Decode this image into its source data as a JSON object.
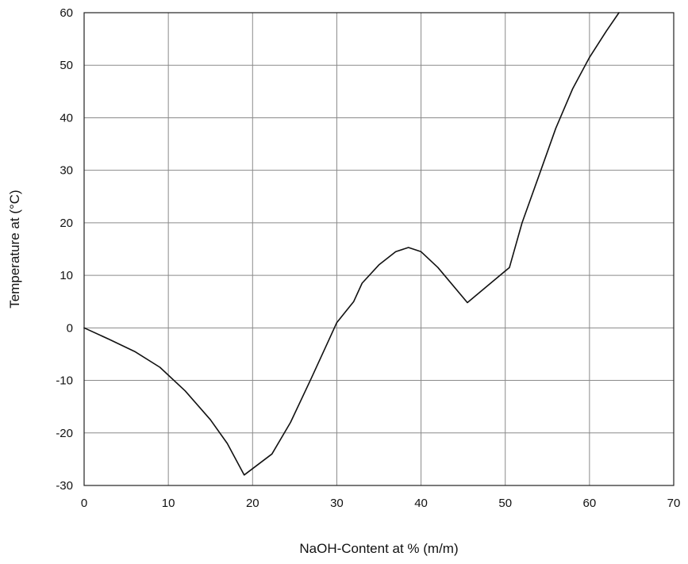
{
  "chart_data": {
    "type": "line",
    "title": "",
    "xlabel": "NaOH-Content at % (m/m)",
    "ylabel": "Temperature at (°C)",
    "xlim": [
      0,
      70
    ],
    "ylim": [
      -30,
      60
    ],
    "xticks": [
      0,
      10,
      20,
      30,
      40,
      50,
      60,
      70
    ],
    "yticks": [
      -30,
      -20,
      -10,
      0,
      10,
      20,
      30,
      40,
      50,
      60
    ],
    "xtick_labels": [
      "0",
      "10",
      "20",
      "30",
      "40",
      "50",
      "60",
      "70"
    ],
    "ytick_labels": [
      "-30",
      "-20",
      "-10",
      "0",
      "10",
      "20",
      "30",
      "40",
      "50",
      "60"
    ],
    "grid": true,
    "legend": "none",
    "colors": {
      "line": "#111111",
      "grid": "#8a8a8a",
      "axis": "#222222"
    },
    "series": [
      {
        "x": [
          0,
          3,
          6,
          9,
          12,
          15,
          17,
          19,
          22.3,
          24.5,
          27,
          29,
          30,
          31,
          32,
          33,
          35,
          37,
          38.5,
          40,
          42,
          45.5,
          50.5,
          52,
          54,
          56,
          58,
          60,
          62,
          63.5
        ],
        "y": [
          0,
          -2.2,
          -4.5,
          -7.5,
          -12,
          -17.5,
          -22,
          -28,
          -24,
          -18,
          -9.5,
          -2.5,
          1,
          3,
          5,
          8.5,
          12,
          14.5,
          15.3,
          14.5,
          11.5,
          4.8,
          11.5,
          20,
          29,
          38,
          45.5,
          51.5,
          56.5,
          60
        ]
      }
    ]
  }
}
